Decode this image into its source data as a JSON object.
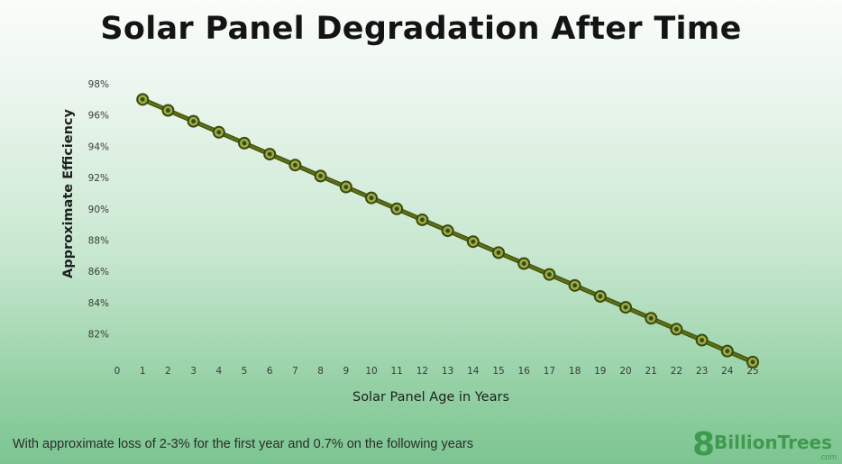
{
  "title": "Solar Panel Degradation After Time",
  "footnote": "With approximate loss of 2-3% for the first year and 0.7% on the following years",
  "logo": {
    "eight": "8",
    "name": "BillionTrees",
    "suffix": ".com"
  },
  "colors": {
    "line": "#5d6e14",
    "marker_edge": "#3a4a0a",
    "marker_fill": "#9aab4a",
    "text": "#2b2b2b"
  },
  "chart_data": {
    "type": "line",
    "title": "Solar Panel Degradation After Time",
    "xlabel": "Solar Panel Age in Years",
    "ylabel": "Approximate Efficiency",
    "x_ticks": [
      0,
      1,
      2,
      3,
      4,
      5,
      6,
      7,
      8,
      9,
      10,
      11,
      12,
      13,
      14,
      15,
      16,
      17,
      18,
      19,
      20,
      21,
      22,
      23,
      24,
      25
    ],
    "y_ticks": [
      "98%",
      "96%",
      "94%",
      "92%",
      "90%",
      "88%",
      "86%",
      "84%",
      "82%"
    ],
    "y_tick_values": [
      98,
      96,
      94,
      92,
      90,
      88,
      86,
      84,
      82
    ],
    "xlim": [
      0,
      25
    ],
    "ylim": [
      81,
      98
    ],
    "grid": false,
    "series": [
      {
        "x": [
          1,
          2,
          3,
          4,
          5,
          6,
          7,
          8,
          9,
          10,
          11,
          12,
          13,
          14,
          15,
          16,
          17,
          18,
          19,
          20,
          21,
          22,
          23,
          24,
          25
        ],
        "values": [
          97.0,
          96.3,
          95.6,
          94.9,
          94.2,
          93.5,
          92.8,
          92.1,
          91.4,
          90.7,
          90.0,
          89.3,
          88.6,
          87.9,
          87.2,
          86.5,
          85.8,
          85.1,
          84.4,
          83.7,
          83.0,
          82.3,
          81.6,
          80.9,
          80.2
        ]
      }
    ]
  }
}
